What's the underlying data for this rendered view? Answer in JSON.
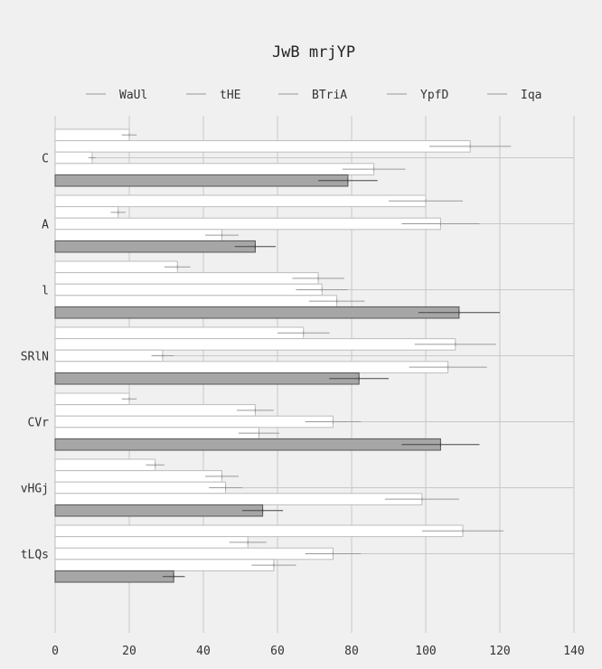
{
  "chart_data": {
    "type": "bar",
    "orientation": "horizontal",
    "title": "JwB mrjYP",
    "xlabel": "",
    "ylabel": "",
    "xlim": [
      0,
      140
    ],
    "x_ticks": [
      "0",
      "20",
      "40",
      "60",
      "80",
      "100",
      "120",
      "140"
    ],
    "grid": true,
    "legend_position": "top",
    "categories": [
      "C",
      "A",
      "l",
      "SRlN",
      "CVr",
      "vHGj",
      "tLQs"
    ],
    "series": [
      {
        "name": "WaUl",
        "color": "#ffffff",
        "values": [
          20,
          100,
          33,
          67,
          20,
          27,
          110
        ],
        "errors": [
          2,
          10,
          3.5,
          7,
          2,
          2.5,
          11
        ]
      },
      {
        "name": "tHE",
        "color": "#ffffff",
        "values": [
          112,
          17,
          71,
          108,
          54,
          45,
          52
        ],
        "errors": [
          11,
          2,
          7,
          11,
          5,
          4.5,
          5
        ]
      },
      {
        "name": "BTriA",
        "color": "#ffffff",
        "values": [
          10,
          104,
          72,
          29,
          75,
          46,
          75
        ],
        "errors": [
          1,
          10.5,
          7,
          3,
          7.5,
          4.5,
          7.5
        ]
      },
      {
        "name": "YpfD",
        "color": "#ffffff",
        "values": [
          86,
          45,
          76,
          106,
          55,
          99,
          59
        ],
        "errors": [
          8.5,
          4.5,
          7.5,
          10.5,
          5.5,
          10,
          6
        ]
      },
      {
        "name": "Iqa",
        "color": "#a6a6a6",
        "values": [
          79,
          54,
          109,
          82,
          104,
          56,
          32
        ],
        "errors": [
          8,
          5.5,
          11,
          8,
          10.5,
          5.5,
          3
        ]
      }
    ]
  }
}
